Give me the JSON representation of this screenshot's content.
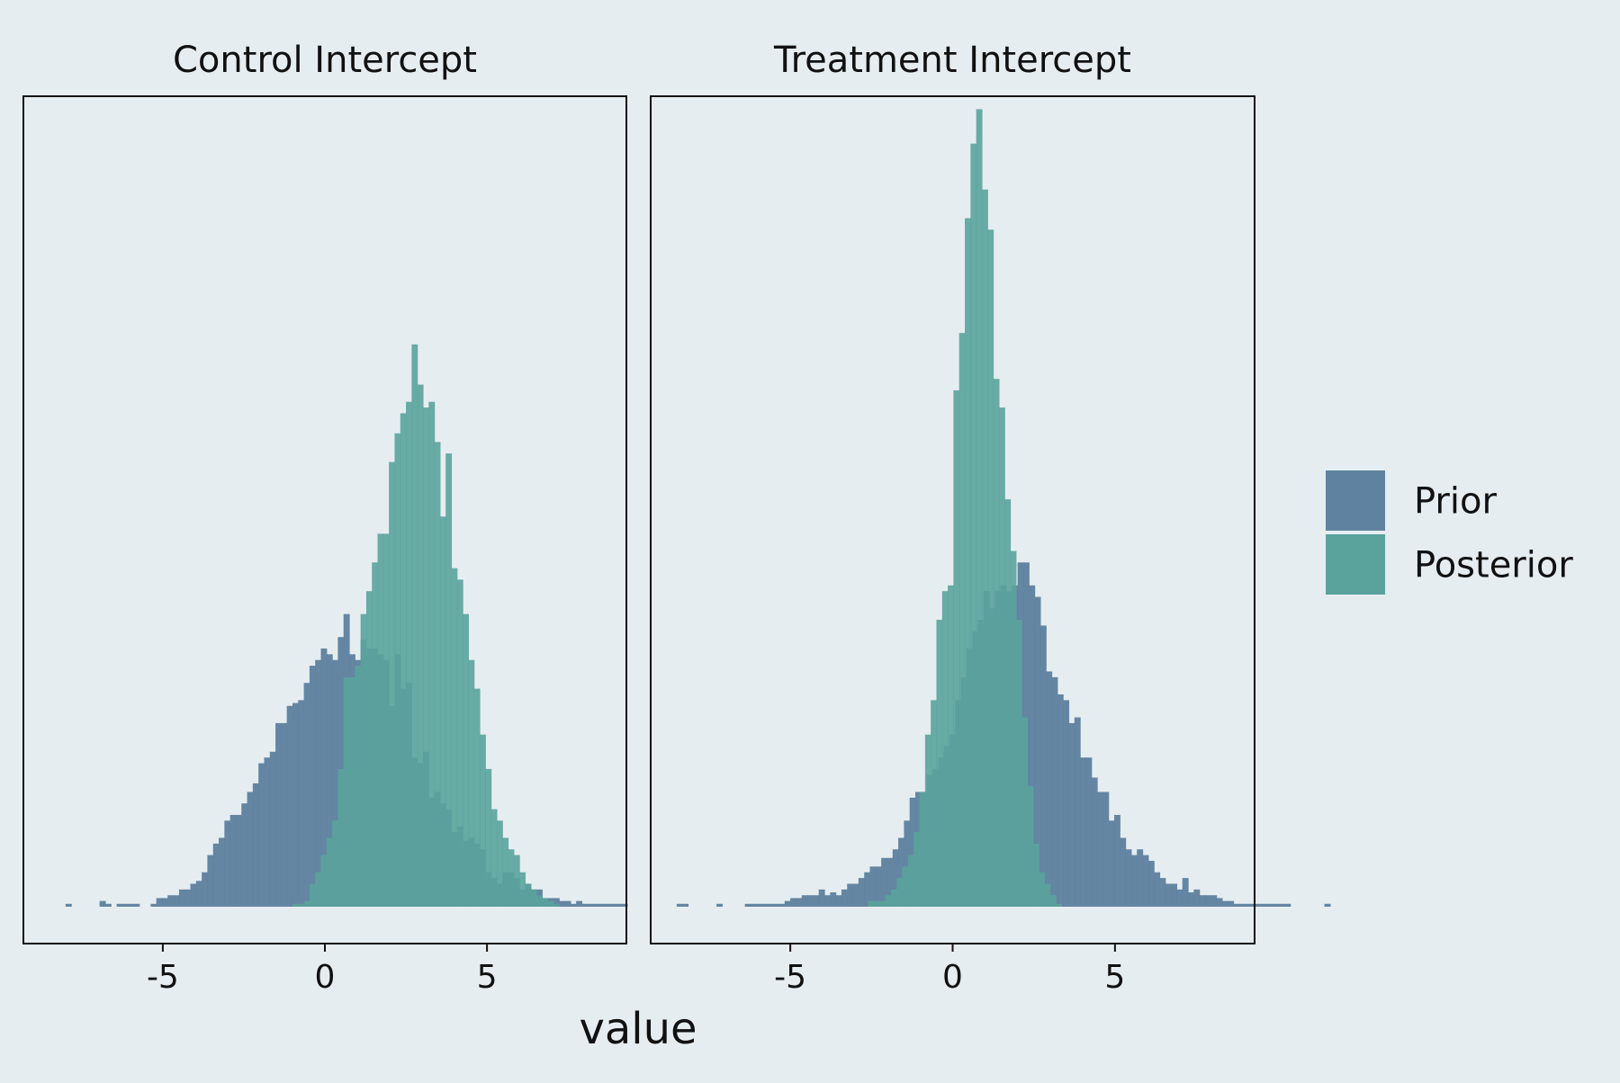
{
  "chart_data": {
    "type": "bar",
    "subtype": "overlaid-histogram-facets",
    "xlabel": "value",
    "ylabel": "",
    "bin_width": 0.175,
    "legend_position": "right",
    "grid": false,
    "colors": {
      "Prior": "#5f82a0",
      "Posterior": "#5aa39c",
      "overlap": "#2e8585"
    },
    "legend": [
      {
        "name": "Prior",
        "color": "#5f82a0"
      },
      {
        "name": "Posterior",
        "color": "#5aa39c"
      }
    ],
    "panels": [
      {
        "title": "Control Intercept",
        "xlim": [
          -9.3,
          9.3
        ],
        "xticks": [
          -5,
          0,
          5
        ],
        "ylim": [
          0,
          280
        ],
        "series": [
          {
            "name": "Prior",
            "x_start": -8.0,
            "counts": [
              1,
              0,
              0,
              0,
              0,
              0,
              2,
              1,
              0,
              1,
              1,
              1,
              1,
              0,
              0,
              1,
              3,
              3,
              4,
              4,
              6,
              6,
              8,
              9,
              12,
              18,
              22,
              24,
              30,
              32,
              32,
              36,
              40,
              43,
              50,
              52,
              54,
              64,
              64,
              70,
              71,
              72,
              78,
              84,
              86,
              90,
              88,
              86,
              94,
              102,
              88,
              86,
              93,
              90,
              90,
              88,
              86,
              70,
              88,
              76,
              78,
              52,
              50,
              54,
              38,
              40,
              36,
              34,
              26,
              28,
              23,
              24,
              22,
              20,
              12,
              10,
              8,
              12,
              12,
              10,
              6,
              8,
              6,
              6,
              3,
              3,
              3,
              2,
              2,
              1,
              2,
              1,
              1,
              1,
              1,
              1,
              1,
              1,
              1
            ]
          },
          {
            "name": "Posterior",
            "x_start": -1.0,
            "counts": [
              1,
              1,
              2,
              8,
              12,
              18,
              24,
              30,
              48,
              80,
              80,
              84,
              102,
              110,
              120,
              130,
              130,
              155,
              165,
              172,
              176,
              196,
              182,
              174,
              176,
              162,
              136,
              158,
              118,
              114,
              102,
              86,
              76,
              60,
              48,
              34,
              30,
              24,
              20,
              18,
              12,
              8,
              6,
              4,
              3,
              2,
              1
            ]
          }
        ]
      },
      {
        "title": "Treatment Intercept",
        "xlim": [
          -9.3,
          9.3
        ],
        "xticks": [
          -5,
          0,
          5
        ],
        "ylim": [
          0,
          280
        ],
        "series": [
          {
            "name": "Prior",
            "x_start": -8.5,
            "counts": [
              1,
              1,
              0,
              0,
              0,
              0,
              0,
              1,
              0,
              0,
              0,
              0,
              1,
              1,
              1,
              1,
              1,
              1,
              1,
              2,
              3,
              3,
              4,
              4,
              4,
              6,
              4,
              5,
              4,
              6,
              8,
              8,
              10,
              12,
              14,
              14,
              17,
              17,
              20,
              24,
              30,
              38,
              40,
              40,
              46,
              48,
              52,
              56,
              60,
              72,
              80,
              90,
              96,
              100,
              110,
              104,
              110,
              112,
              110,
              112,
              120,
              120,
              112,
              108,
              98,
              82,
              80,
              74,
              72,
              64,
              66,
              52,
              52,
              45,
              40,
              40,
              30,
              32,
              24,
              20,
              18,
              20,
              18,
              16,
              12,
              10,
              8,
              8,
              6,
              10,
              5,
              6,
              4,
              4,
              4,
              3,
              2,
              2,
              1,
              1,
              1,
              1,
              1,
              1,
              1,
              1,
              1,
              1,
              0,
              0,
              0,
              0,
              0,
              0,
              1
            ]
          },
          {
            "name": "Posterior",
            "x_start": -2.6,
            "counts": [
              2,
              2,
              2,
              4,
              6,
              10,
              14,
              18,
              26,
              40,
              60,
              72,
              100,
              110,
              112,
              180,
              200,
              240,
              266,
              278,
              250,
              236,
              184,
              174,
              142,
              124,
              100,
              66,
              42,
              22,
              12,
              8,
              4,
              1
            ]
          }
        ]
      }
    ]
  }
}
